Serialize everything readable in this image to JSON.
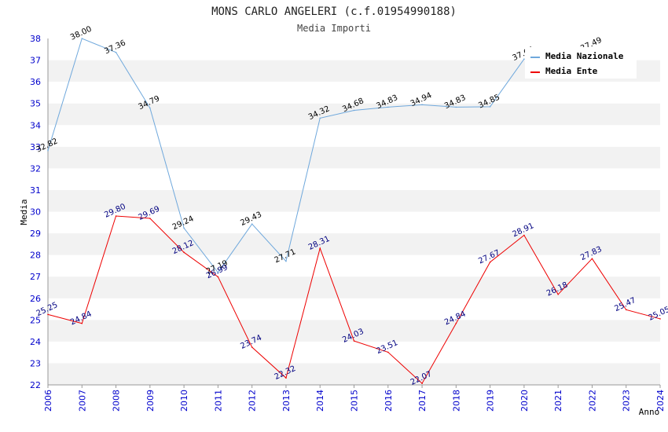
{
  "chart_data": {
    "type": "line",
    "title": "MONS CARLO ANGELERI (c.f.01954990188)",
    "subtitle": "Media Importi",
    "xlabel": "Anno",
    "ylabel": "Media",
    "ylim": [
      22,
      38
    ],
    "categories": [
      "2006",
      "2007",
      "2008",
      "2009",
      "2010",
      "2011",
      "2012",
      "2013",
      "2014",
      "2015",
      "2016",
      "2017",
      "2018",
      "2019",
      "2020",
      "2021",
      "2022",
      "2023",
      "2024"
    ],
    "yticks": [
      "22",
      "23",
      "24",
      "25",
      "26",
      "27",
      "28",
      "29",
      "30",
      "31",
      "32",
      "33",
      "34",
      "35",
      "36",
      "37",
      "38"
    ],
    "series": [
      {
        "name": "Media Nazionale",
        "color": "#6fa8dc",
        "values": [
          32.82,
          38.0,
          37.36,
          34.79,
          29.24,
          27.19,
          29.43,
          27.71,
          34.32,
          34.68,
          34.83,
          34.94,
          34.83,
          34.85,
          37.05,
          null,
          37.49,
          null,
          null
        ],
        "labels": [
          "32.82",
          "38.00",
          "37.36",
          "34.79",
          "29.24",
          "27.19",
          "29.43",
          "27.71",
          "34.32",
          "34.68",
          "34.83",
          "34.94",
          "34.83",
          "34.85",
          "37.05",
          null,
          "37.49",
          null,
          null
        ]
      },
      {
        "name": "Media Ente",
        "color": "#ee0000",
        "values": [
          25.25,
          24.84,
          29.8,
          29.69,
          28.12,
          26.99,
          23.74,
          22.32,
          28.31,
          24.03,
          23.51,
          22.07,
          24.84,
          27.67,
          28.91,
          26.18,
          27.83,
          25.47,
          25.05
        ],
        "labels": [
          "25.25",
          "24.84",
          "29.80",
          "29.69",
          "28.12",
          "26.99",
          "23.74",
          "22.32",
          "28.31",
          "24.03",
          "23.51",
          "22.07",
          "24.84",
          "27.67",
          "28.91",
          "26.18",
          "27.83",
          "25.47",
          "25.05"
        ]
      }
    ],
    "legend": "top-right"
  }
}
